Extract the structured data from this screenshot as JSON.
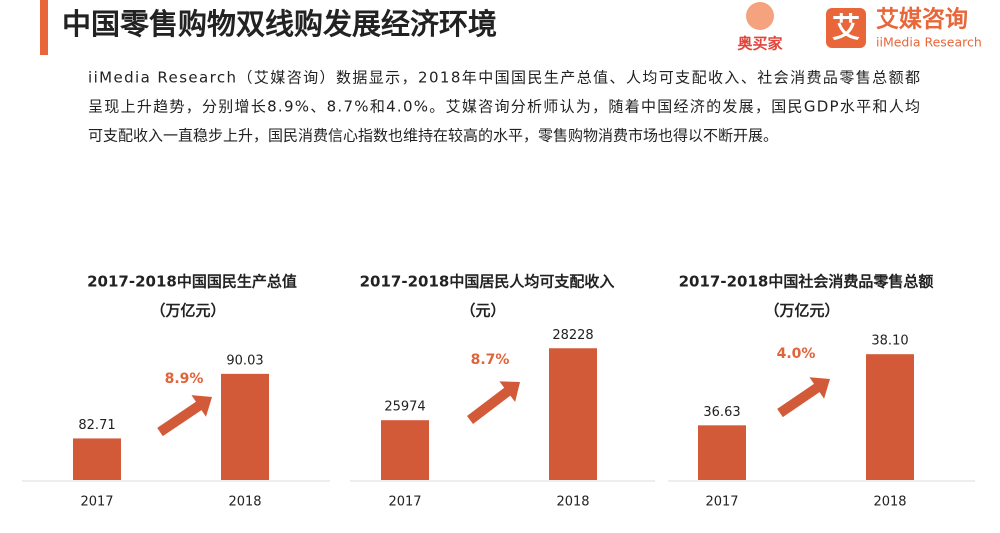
{
  "header": {
    "title": "中国零售购物双线购发展经济环境",
    "logos": [
      "奥买家",
      "艾",
      "艾媒咨询",
      "iiMedia Research"
    ]
  },
  "intro": [
    "iiMedia Research（艾媒咨询）数据显示，2018年中国国民生产总值、人均可支配收入、社会消费品零售总额都",
    "呈现上升趋势，分别增长8.9%、8.7%和4.0%。艾媒咨询分析师认为，随着中国经济的发展，国民GDP水平和人均",
    "可支配收入一直稳步上升，国民消费信心指数也维持在较高的水平，零售购物消费市场也得以不断开展。"
  ],
  "chart_data": [
    {
      "type": "bar",
      "title": "2017-2018中国国民生产总值",
      "subtitle": "（万亿元）",
      "categories": [
        "2017",
        "2018"
      ],
      "values": [
        82.71,
        90.03
      ],
      "value_labels": [
        "82.71",
        "90.03"
      ],
      "color": "#d35a38",
      "ylim": [
        78,
        95
      ],
      "annotation": "8.9%",
      "annotation_color": "#e0643a"
    },
    {
      "type": "bar",
      "title": "2017-2018中国居民人均可支配收入",
      "subtitle": "（元）",
      "categories": [
        "2017",
        "2018"
      ],
      "values": [
        25974,
        28228
      ],
      "value_labels": [
        "25974",
        "28228"
      ],
      "color": "#d35a38",
      "ylim": [
        24100,
        28800
      ],
      "annotation": "8.7%",
      "annotation_color": "#e0643a"
    },
    {
      "type": "bar",
      "title": "2017-2018中国社会消费品零售总额",
      "subtitle": "（万亿元）",
      "categories": [
        "2017",
        "2018"
      ],
      "values": [
        36.63,
        38.1
      ],
      "value_labels": [
        "36.63",
        "38.10"
      ],
      "color": "#d35a38",
      "ylim": [
        35.5,
        38.6
      ],
      "annotation": "4.0%",
      "annotation_color": "#e0643a"
    }
  ]
}
